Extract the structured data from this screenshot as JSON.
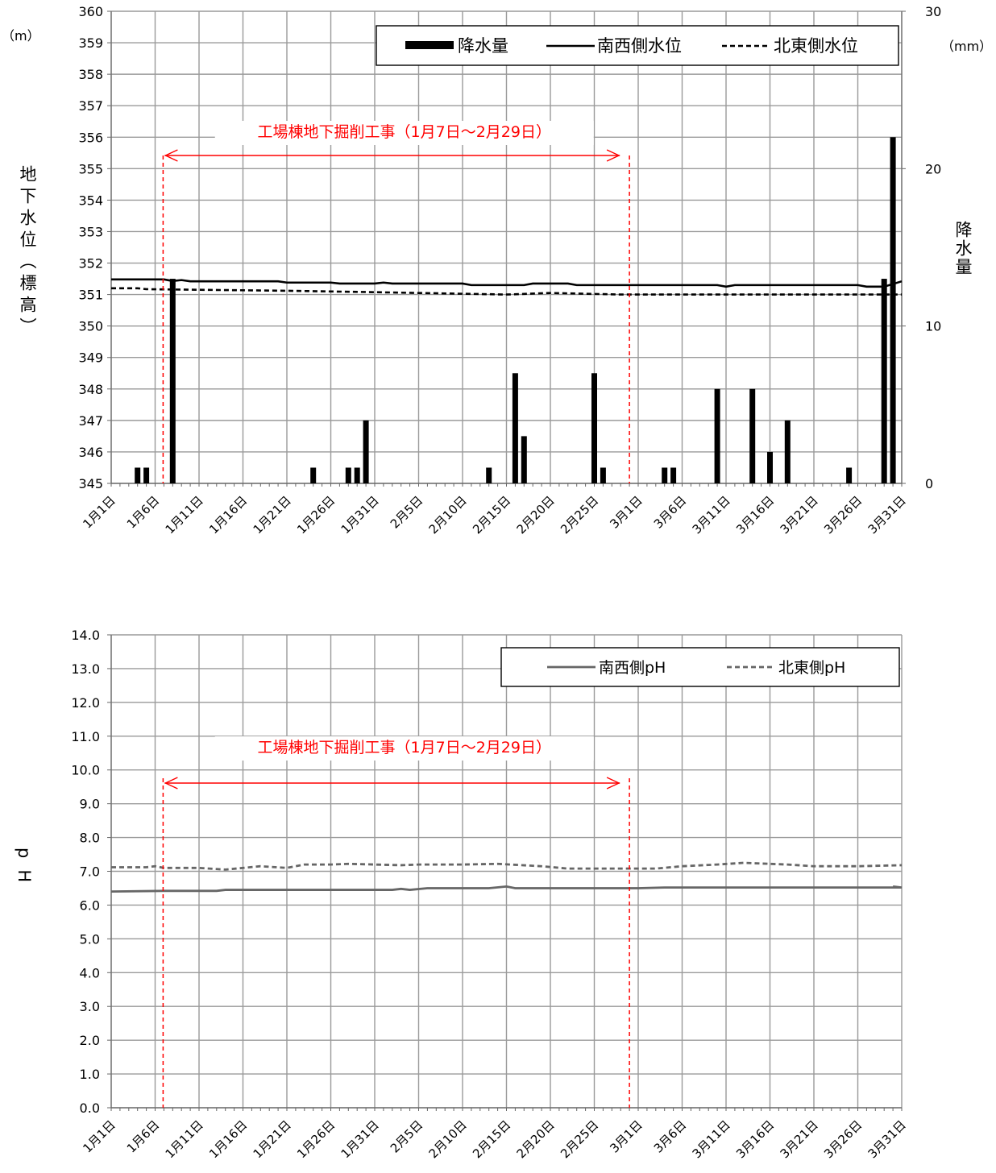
{
  "chart_data": [
    {
      "type": "bar+line",
      "left_unit": "（m）",
      "right_unit": "（mm）",
      "ylabel_left": "地下水位（標高）",
      "ylabel_right": "降水量",
      "ylim_left": [
        345,
        360
      ],
      "ylim_right": [
        0,
        30
      ],
      "yticks_left": [
        "345",
        "346",
        "347",
        "348",
        "349",
        "350",
        "351",
        "352",
        "353",
        "354",
        "355",
        "356",
        "357",
        "358",
        "359",
        "360"
      ],
      "yticks_right": [
        "0",
        "10",
        "20",
        "30"
      ],
      "x_tick_labels": [
        "1月1日",
        "1月6日",
        "1月11日",
        "1月16日",
        "1月21日",
        "1月26日",
        "1月31日",
        "2月5日",
        "2月10日",
        "2月15日",
        "2月20日",
        "2月25日",
        "3月1日",
        "3月6日",
        "3月11日",
        "3月16日",
        "3月21日",
        "3月26日",
        "3月31日"
      ],
      "annotation": "工場棟地下掘削工事（1月7日～2月29日）",
      "annotation_span": [
        "1月7日",
        "2月29日"
      ],
      "legend": {
        "position": "top-right",
        "entries": [
          "降水量",
          "南西側水位",
          "北東側水位"
        ]
      },
      "precipitation": [
        {
          "date": "1月4日",
          "value": 1
        },
        {
          "date": "1月5日",
          "value": 1
        },
        {
          "date": "1月8日",
          "value": 13
        },
        {
          "date": "1月24日",
          "value": 1
        },
        {
          "date": "1月28日",
          "value": 1
        },
        {
          "date": "1月29日",
          "value": 1
        },
        {
          "date": "1月30日",
          "value": 4
        },
        {
          "date": "2月13日",
          "value": 1
        },
        {
          "date": "2月16日",
          "value": 7
        },
        {
          "date": "2月17日",
          "value": 3
        },
        {
          "date": "2月25日",
          "value": 7
        },
        {
          "date": "2月26日",
          "value": 1
        },
        {
          "date": "3月4日",
          "value": 1
        },
        {
          "date": "3月5日",
          "value": 1
        },
        {
          "date": "3月10日",
          "value": 6
        },
        {
          "date": "3月14日",
          "value": 6
        },
        {
          "date": "3月16日",
          "value": 2
        },
        {
          "date": "3月18日",
          "value": 4
        },
        {
          "date": "3月25日",
          "value": 1
        },
        {
          "date": "3月29日",
          "value": 13
        },
        {
          "date": "3月30日",
          "value": 22
        }
      ],
      "series": [
        {
          "name": "南西側水位",
          "style": "solid",
          "points": [
            [
              "1月1日",
              351.48
            ],
            [
              "1月7日",
              351.48
            ],
            [
              "1月8日",
              351.43
            ],
            [
              "1月9日",
              351.46
            ],
            [
              "1月10日",
              351.42
            ],
            [
              "1月20日",
              351.42
            ],
            [
              "1月21日",
              351.38
            ],
            [
              "1月26日",
              351.38
            ],
            [
              "1月27日",
              351.35
            ],
            [
              "1月31日",
              351.35
            ],
            [
              "2月1日",
              351.38
            ],
            [
              "2月2日",
              351.35
            ],
            [
              "2月10日",
              351.35
            ],
            [
              "2月11日",
              351.3
            ],
            [
              "2月17日",
              351.3
            ],
            [
              "2月18日",
              351.35
            ],
            [
              "2月22日",
              351.35
            ],
            [
              "2月23日",
              351.3
            ],
            [
              "3月10日",
              351.3
            ],
            [
              "3月11日",
              351.25
            ],
            [
              "3月12日",
              351.3
            ],
            [
              "3月26日",
              351.3
            ],
            [
              "3月27日",
              351.25
            ],
            [
              "3月29日",
              351.25
            ],
            [
              "3月31日",
              351.42
            ]
          ]
        },
        {
          "name": "北東側水位",
          "style": "dashed",
          "points": [
            [
              "1月1日",
              351.2
            ],
            [
              "1月4日",
              351.2
            ],
            [
              "1月5日",
              351.17
            ],
            [
              "1月21日",
              351.12
            ],
            [
              "1月30日",
              351.08
            ],
            [
              "2月5日",
              351.05
            ],
            [
              "2月15日",
              351.0
            ],
            [
              "2月20日",
              351.05
            ],
            [
              "2月28日",
              351.0
            ],
            [
              "3月31日",
              351.0
            ]
          ]
        }
      ]
    },
    {
      "type": "line",
      "ylabel": "pH",
      "ylim": [
        0,
        14
      ],
      "yticks": [
        "0.0",
        "1.0",
        "2.0",
        "3.0",
        "4.0",
        "5.0",
        "6.0",
        "7.0",
        "8.0",
        "9.0",
        "10.0",
        "11.0",
        "12.0",
        "13.0",
        "14.0"
      ],
      "x_tick_labels": [
        "1月1日",
        "1月6日",
        "1月11日",
        "1月16日",
        "1月21日",
        "1月26日",
        "1月31日",
        "2月5日",
        "2月10日",
        "2月15日",
        "2月20日",
        "2月25日",
        "3月1日",
        "3月6日",
        "3月11日",
        "3月16日",
        "3月21日",
        "3月26日",
        "3月31日"
      ],
      "annotation": "工場棟地下掘削工事（1月7日～2月29日）",
      "annotation_span": [
        "1月7日",
        "2月29日"
      ],
      "legend": {
        "position": "top-right",
        "entries": [
          "南西側pH",
          "北東側pH"
        ]
      },
      "series": [
        {
          "name": "南西側pH",
          "style": "solid",
          "color": "#666666",
          "points": [
            [
              "1月1日",
              6.4
            ],
            [
              "1月7日",
              6.42
            ],
            [
              "1月13日",
              6.42
            ],
            [
              "1月14日",
              6.45
            ],
            [
              "2月2日",
              6.45
            ],
            [
              "2月3日",
              6.48
            ],
            [
              "2月4日",
              6.45
            ],
            [
              "2月6日",
              6.5
            ],
            [
              "2月13日",
              6.5
            ],
            [
              "2月15日",
              6.55
            ],
            [
              "2月16日",
              6.5
            ],
            [
              "2月20日",
              6.5
            ],
            [
              "2月22日",
              6.5
            ],
            [
              "3月1日",
              6.5
            ],
            [
              "3月4日",
              6.52
            ],
            [
              "3月31日",
              6.52
            ],
            [
              "3月30日",
              6.55
            ]
          ]
        },
        {
          "name": "北東側pH",
          "style": "dashed",
          "color": "#666666",
          "points": [
            [
              "1月1日",
              7.12
            ],
            [
              "1月5日",
              7.12
            ],
            [
              "1月6日",
              7.15
            ],
            [
              "1月7日",
              7.1
            ],
            [
              "1月11日",
              7.1
            ],
            [
              "1月14日",
              7.05
            ],
            [
              "1月18日",
              7.15
            ],
            [
              "1月21日",
              7.1
            ],
            [
              "1月23日",
              7.2
            ],
            [
              "1月26日",
              7.2
            ],
            [
              "1月28日",
              7.22
            ],
            [
              "2月3日",
              7.18
            ],
            [
              "2月5日",
              7.2
            ],
            [
              "2月10日",
              7.2
            ],
            [
              "2月14日",
              7.22
            ],
            [
              "2月19日",
              7.15
            ],
            [
              "2月22日",
              7.08
            ],
            [
              "2月27日",
              7.08
            ],
            [
              "3月3日",
              7.08
            ],
            [
              "3月6日",
              7.15
            ],
            [
              "3月10日",
              7.2
            ],
            [
              "3月13日",
              7.25
            ],
            [
              "3月18日",
              7.2
            ],
            [
              "3月21日",
              7.15
            ],
            [
              "3月26日",
              7.15
            ],
            [
              "3月31日",
              7.18
            ]
          ]
        }
      ]
    }
  ]
}
